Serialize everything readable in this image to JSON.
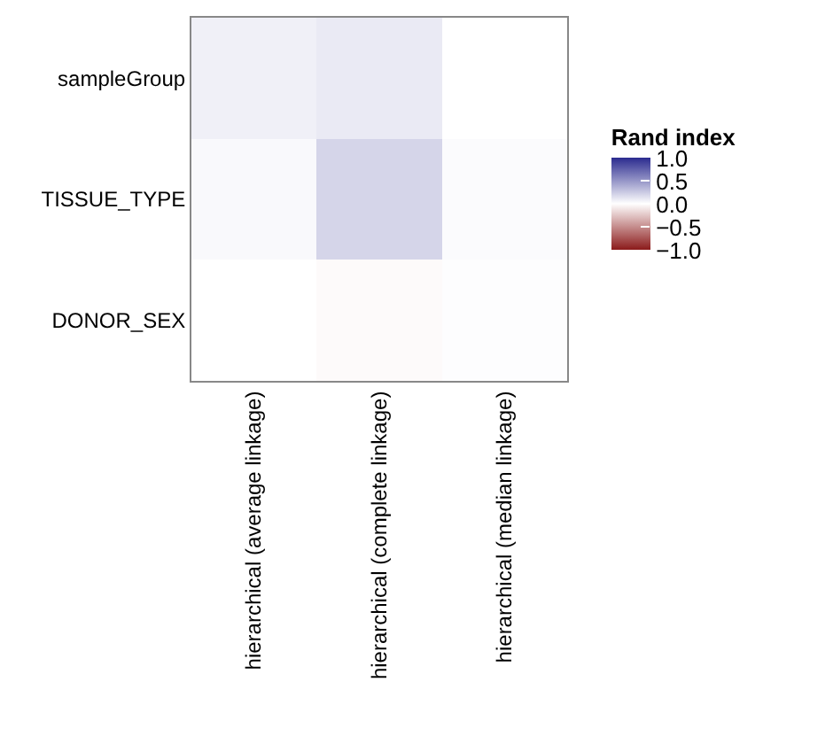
{
  "chart_data": {
    "type": "heatmap",
    "clabel": "Rand index",
    "categories": [
      "hierarchical (average linkage)",
      "hierarchical (complete linkage)",
      "hierarchical (median linkage)"
    ],
    "y_categories": [
      "sampleGroup",
      "TISSUE_TYPE",
      "DONOR_SEX"
    ],
    "cells": [
      [
        0.07,
        0.1,
        0.0
      ],
      [
        0.03,
        0.2,
        0.02
      ],
      [
        0.0,
        -0.02,
        0.01
      ]
    ],
    "clim": [
      -1,
      1
    ],
    "cticks": [
      {
        "value": 1,
        "label": "1.0"
      },
      {
        "value": 0.5,
        "label": "0.5"
      },
      {
        "value": 0,
        "label": "0.0"
      },
      {
        "value": -0.5,
        "label": "−0.5"
      },
      {
        "value": -1,
        "label": "−1.0"
      }
    ]
  }
}
